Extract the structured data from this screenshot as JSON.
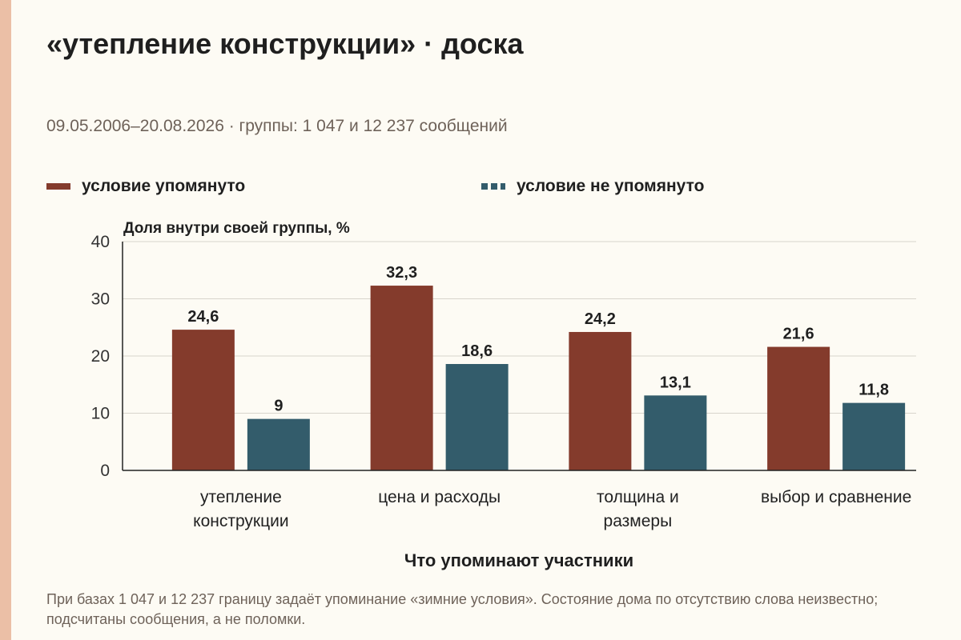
{
  "header": {
    "title": "«утепление конструкции» · доска",
    "subtitle": "09.05.2006–20.08.2026 · группы: 1 047 и 12 237 сообщений"
  },
  "legend": {
    "mentioned": "условие упомянуто",
    "not_mentioned": "условие не упомянуто"
  },
  "footnote": "При базах 1 047 и 12 237 границу задаёт упоминание «зимние условия». Состояние дома по отсутствию слова неизвестно; подсчитаны сообщения, а не поломки.",
  "colors": {
    "mentioned": "#843b2c",
    "not_mentioned": "#335c6b",
    "background": "#fdfbf4",
    "grid": "#d8d4cc"
  },
  "chart_data": {
    "type": "bar",
    "ylabel": "Доля внутри своей группы, %",
    "xlabel": "Что упоминают участники",
    "ylim": [
      0,
      40
    ],
    "yticks": [
      0,
      10,
      20,
      30,
      40
    ],
    "grid": true,
    "legend_position": "top",
    "categories": [
      [
        "утепление",
        "конструкции"
      ],
      [
        "цена и расходы"
      ],
      [
        "толщина и",
        "размеры"
      ],
      [
        "выбор и сравнение"
      ]
    ],
    "series": [
      {
        "name": "условие упомянуто",
        "values": [
          24.6,
          32.3,
          24.2,
          21.6
        ],
        "labels": [
          "24,6",
          "32,3",
          "24,2",
          "21,6"
        ]
      },
      {
        "name": "условие не упомянуто",
        "values": [
          9,
          18.6,
          13.1,
          11.8
        ],
        "labels": [
          "9",
          "18,6",
          "13,1",
          "11,8"
        ]
      }
    ]
  }
}
